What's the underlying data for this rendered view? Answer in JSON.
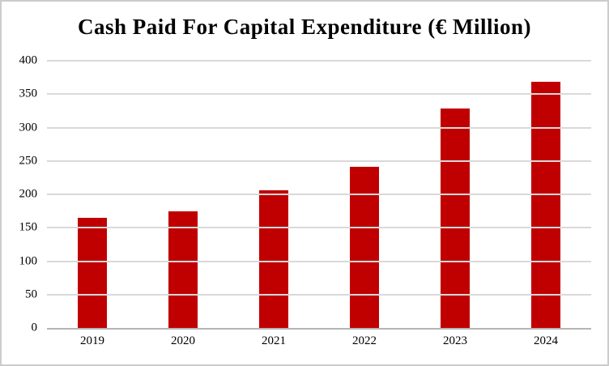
{
  "chart": {
    "title": "Cash Paid For Capital Expenditure (€ Million)"
  },
  "chart_data": {
    "type": "bar",
    "title": "Cash Paid For Capital Expenditure (€ Million)",
    "categories": [
      "2019",
      "2020",
      "2021",
      "2022",
      "2023",
      "2024"
    ],
    "values": [
      165,
      175,
      206,
      241,
      328,
      369
    ],
    "xlabel": "",
    "ylabel": "",
    "ylim": [
      0,
      400
    ],
    "ytick_step": 50,
    "grid": true,
    "legend": false,
    "colors": {
      "bar": "#c00000",
      "gridline": "#d9d9d9",
      "axis_line": "#b5b5b5",
      "text": "#000000",
      "frame_border": "#cccccc",
      "background": "#ffffff"
    }
  }
}
